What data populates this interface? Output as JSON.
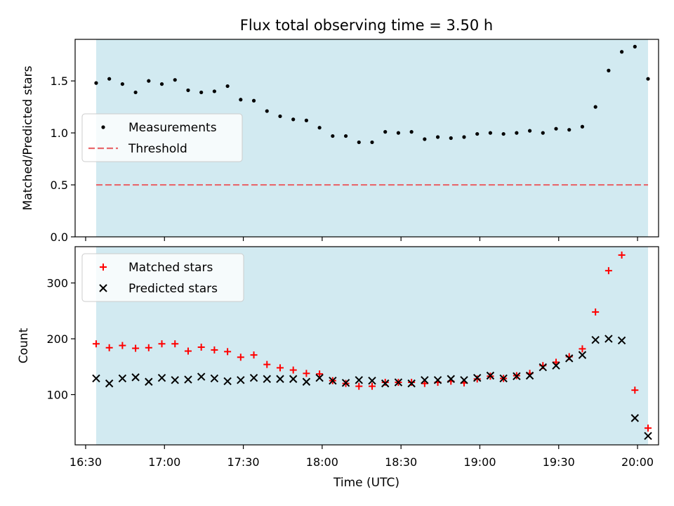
{
  "title": "Flux total observing time = 3.50 h",
  "xlabel": "Time (UTC)",
  "colors": {
    "shade": "#add8e6",
    "threshold": "#e8686c",
    "matched": "#ff0000",
    "predicted": "#000000",
    "measurement": "#000000"
  },
  "chart_data": [
    {
      "type": "scatter",
      "ylabel": "Matched/Predicted stars",
      "xlim": [
        "16:26",
        "20:08"
      ],
      "ylim": [
        0,
        1.9
      ],
      "yticks": [
        0.0,
        0.5,
        1.0,
        1.5
      ],
      "ytick_labels": [
        "0.0",
        "0.5",
        "1.0",
        "1.5"
      ],
      "shaded_span": [
        "16:34",
        "20:04"
      ],
      "threshold": 0.5,
      "legend": {
        "placement": "center-left",
        "entries": [
          "Measurements",
          "Threshold"
        ]
      },
      "series": [
        {
          "name": "Measurements",
          "marker": "dot",
          "x": [
            "16:34",
            "16:39",
            "16:44",
            "16:49",
            "16:54",
            "16:59",
            "17:04",
            "17:09",
            "17:14",
            "17:19",
            "17:24",
            "17:29",
            "17:34",
            "17:39",
            "17:44",
            "17:49",
            "17:54",
            "17:59",
            "18:04",
            "18:09",
            "18:14",
            "18:19",
            "18:24",
            "18:29",
            "18:34",
            "18:39",
            "18:44",
            "18:49",
            "18:54",
            "18:59",
            "19:04",
            "19:09",
            "19:14",
            "19:19",
            "19:24",
            "19:29",
            "19:34",
            "19:39",
            "19:44",
            "19:49",
            "19:54",
            "19:59",
            "20:04"
          ],
          "y": [
            1.48,
            1.52,
            1.47,
            1.39,
            1.5,
            1.47,
            1.51,
            1.41,
            1.39,
            1.4,
            1.45,
            1.32,
            1.31,
            1.21,
            1.16,
            1.13,
            1.12,
            1.05,
            0.97,
            0.97,
            0.91,
            0.91,
            1.01,
            1.0,
            1.01,
            0.94,
            0.96,
            0.95,
            0.96,
            0.99,
            1.0,
            0.99,
            1.0,
            1.02,
            1.0,
            1.04,
            1.03,
            1.06,
            1.25,
            1.6,
            1.78,
            1.83,
            1.52
          ]
        }
      ]
    },
    {
      "type": "scatter",
      "ylabel": "Count",
      "xlim": [
        "16:26",
        "20:08"
      ],
      "ylim": [
        10,
        365
      ],
      "yticks": [
        100,
        200,
        300
      ],
      "ytick_labels": [
        "100",
        "200",
        "300"
      ],
      "shaded_span": [
        "16:34",
        "20:04"
      ],
      "legend": {
        "placement": "top-left",
        "entries": [
          "Matched stars",
          "Predicted stars"
        ]
      },
      "x": [
        "16:34",
        "16:39",
        "16:44",
        "16:49",
        "16:54",
        "16:59",
        "17:04",
        "17:09",
        "17:14",
        "17:19",
        "17:24",
        "17:29",
        "17:34",
        "17:39",
        "17:44",
        "17:49",
        "17:54",
        "17:59",
        "18:04",
        "18:09",
        "18:14",
        "18:19",
        "18:24",
        "18:29",
        "18:34",
        "18:39",
        "18:44",
        "18:49",
        "18:54",
        "18:59",
        "19:04",
        "19:09",
        "19:14",
        "19:19",
        "19:24",
        "19:29",
        "19:34",
        "19:39",
        "19:44",
        "19:49",
        "19:54",
        "19:59",
        "20:04"
      ],
      "series": [
        {
          "name": "Matched stars",
          "marker": "plus",
          "values": [
            191,
            184,
            188,
            183,
            184,
            191,
            191,
            178,
            185,
            180,
            177,
            167,
            171,
            154,
            148,
            144,
            138,
            137,
            125,
            120,
            115,
            115,
            122,
            122,
            122,
            120,
            122,
            124,
            121,
            128,
            133,
            129,
            134,
            138,
            152,
            158,
            168,
            182,
            248,
            322,
            350,
            108,
            40
          ]
        },
        {
          "name": "Predicted stars",
          "marker": "x",
          "values": [
            129,
            120,
            129,
            131,
            123,
            130,
            126,
            127,
            132,
            129,
            124,
            126,
            130,
            128,
            128,
            128,
            123,
            130,
            125,
            121,
            126,
            125,
            120,
            122,
            120,
            126,
            126,
            128,
            126,
            130,
            134,
            129,
            133,
            134,
            149,
            152,
            165,
            171,
            198,
            200,
            197,
            58,
            26
          ]
        }
      ]
    }
  ],
  "xticks": [
    "16:30",
    "17:00",
    "17:30",
    "18:00",
    "18:30",
    "19:00",
    "19:30",
    "20:00"
  ]
}
